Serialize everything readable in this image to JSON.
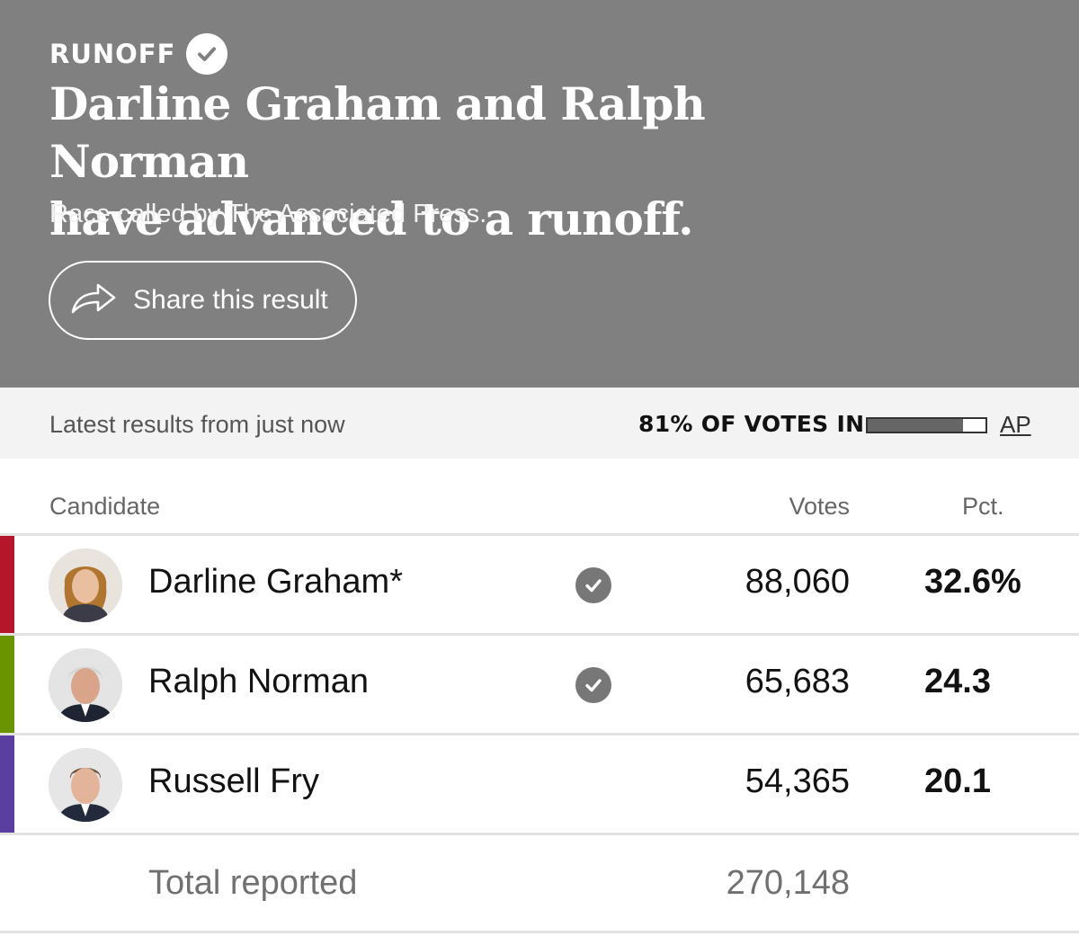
{
  "header": {
    "kicker": "RUNOFF",
    "headline_line1": "Darline Graham and Ralph Norman",
    "headline_line2": "have advanced to a runoff.",
    "called_by": "Race called by The Associated Press.",
    "share_label": "Share this result"
  },
  "status": {
    "latest": "Latest results from just now",
    "votes_in": "81% OF VOTES IN",
    "reporting_fraction": 0.81,
    "source_link": "AP"
  },
  "table": {
    "columns": {
      "candidate": "Candidate",
      "votes": "Votes",
      "pct": "Pct."
    },
    "rows": [
      {
        "name": "Darline Graham*",
        "votes": "88,060",
        "pct": "32.6%",
        "advanced": true,
        "party_color": "#b5162b",
        "avatar": "candidate-photo-woman"
      },
      {
        "name": "Ralph Norman",
        "votes": "65,683",
        "pct": "24.3",
        "advanced": true,
        "party_color": "#6b9500",
        "avatar": "candidate-photo-man-gray-hair"
      },
      {
        "name": "Russell Fry",
        "votes": "54,365",
        "pct": "20.1",
        "advanced": false,
        "party_color": "#5b3fa0",
        "avatar": "candidate-photo-man-short-hair"
      }
    ],
    "total_label": "Total reported",
    "total_votes": "270,148"
  },
  "colors": {
    "header_bg": "#808080",
    "status_bg": "#f3f3f3",
    "check_gray": "#777777"
  }
}
